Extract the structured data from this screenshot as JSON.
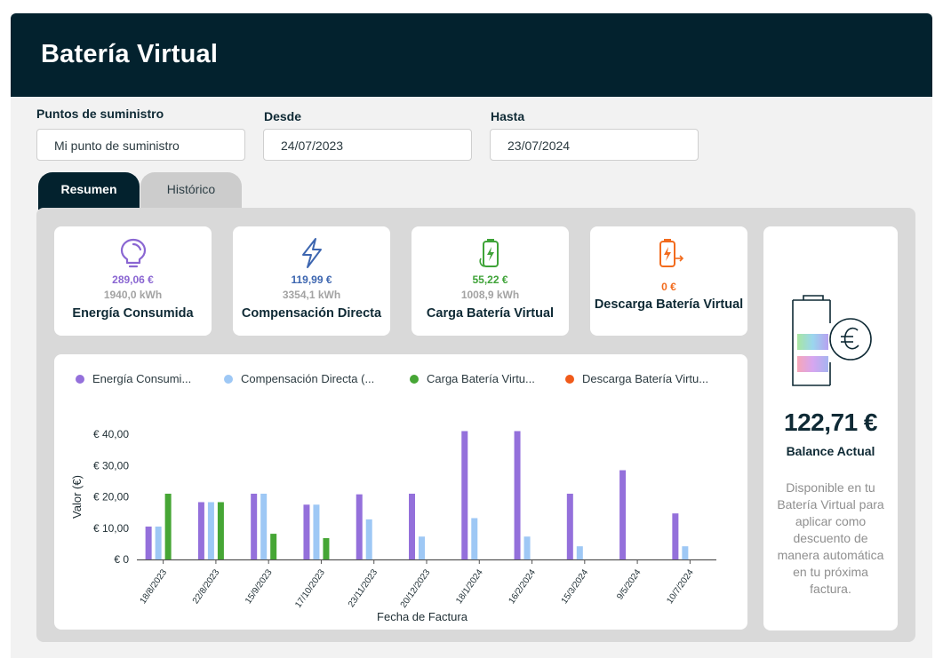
{
  "header": {
    "title": "Batería Virtual"
  },
  "filters": {
    "supply_label": "Puntos de suministro",
    "supply_value": "Mi punto de suministro",
    "from_label": "Desde",
    "from_value": "24/07/2023",
    "to_label": "Hasta",
    "to_value": "23/07/2024"
  },
  "tabs": [
    {
      "label": "Resumen",
      "active": true
    },
    {
      "label": "Histórico",
      "active": false
    }
  ],
  "summary_cards": [
    {
      "icon": "lightbulb-icon",
      "amount": "289,06 €",
      "kwh": "1940,0 kWh",
      "name": "Energía Consumida",
      "color": "#8a66d2"
    },
    {
      "icon": "lightning-bolt-icon",
      "amount": "119,99 €",
      "kwh": "3354,1 kWh",
      "name": "Compensación Directa",
      "color": "#3d66b0"
    },
    {
      "icon": "battery-charge-icon",
      "amount": "55,22 €",
      "kwh": "1008,9 kWh",
      "name": "Carga Batería Virtual",
      "color": "#3fa338"
    },
    {
      "icon": "battery-discharge-icon",
      "amount": "0 €",
      "kwh": "",
      "name": "Descarga Batería Virtual",
      "color": "#f26b1d"
    }
  ],
  "balance": {
    "icon": "battery-euro-icon",
    "amount": "122,71 €",
    "label": "Balance Actual",
    "description": "Disponible en tu Batería Virtual para aplicar como descuento de manera automática en tu próxima factura."
  },
  "chart_data": {
    "type": "bar",
    "xlabel": "Fecha de Factura",
    "ylabel": "Valor (€)",
    "ylim": [
      0,
      40
    ],
    "yticks": [
      0,
      10,
      20,
      30,
      40
    ],
    "ytick_labels": [
      "€ 0",
      "€ 10,00",
      "€ 20,00",
      "€ 30,00",
      "€ 40,00"
    ],
    "grid": false,
    "legend_position": "top",
    "categories": [
      "18/8/2023",
      "22/8/2023",
      "15/9/2023",
      "17/10/2023",
      "23/11/2023",
      "20/12/2023",
      "18/1/2024",
      "16/2/2024",
      "15/3/2024",
      "9/5/2024",
      "10/7/2024"
    ],
    "series": [
      {
        "name": "Energía Consumi...",
        "color": "#9470db",
        "values": [
          10.5,
          18.3,
          21.0,
          17.5,
          20.8,
          21.0,
          41.0,
          41.0,
          21.0,
          28.5,
          14.7
        ]
      },
      {
        "name": "Compensación Directa (...",
        "color": "#9ec8f5",
        "values": [
          10.5,
          18.3,
          21.0,
          17.5,
          12.8,
          7.3,
          13.2,
          7.3,
          4.2,
          0,
          4.2
        ]
      },
      {
        "name": "Carga Batería Virtu...",
        "color": "#46a635",
        "values": [
          21.0,
          18.3,
          8.2,
          6.8,
          0,
          0,
          0,
          0,
          0,
          0,
          0
        ]
      },
      {
        "name": "Descarga Batería Virtu...",
        "color": "#f05a1a",
        "values": [
          0,
          0,
          0,
          0,
          0,
          0,
          0,
          0,
          0,
          0,
          0
        ]
      }
    ]
  }
}
